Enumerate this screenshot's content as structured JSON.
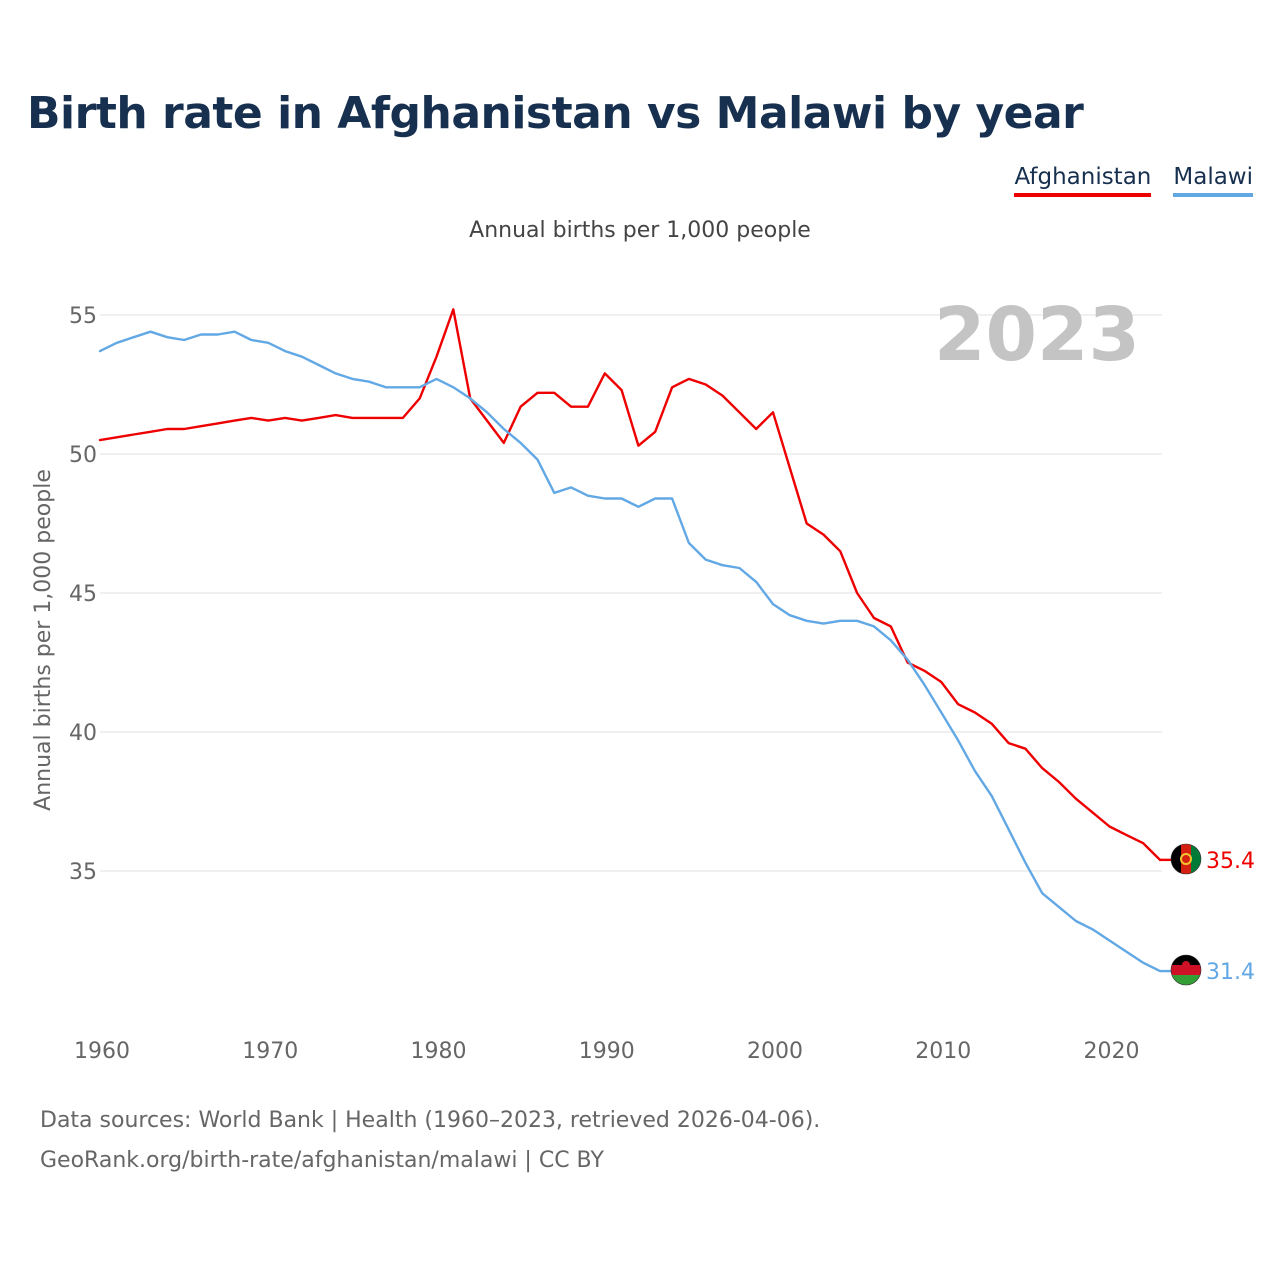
{
  "title": "Birth rate in Afghanistan vs Malawi by year",
  "subtitle": "Annual births per 1,000 people",
  "legend": [
    {
      "label": "Afghanistan",
      "color": "#ee0000"
    },
    {
      "label": "Malawi",
      "color": "#62a8e5"
    }
  ],
  "year_badge": "2023",
  "source_lines": [
    "Data sources: World Bank | Health (1960–2023, retrieved 2026-04-06).",
    "GeoRank.org/birth-rate/afghanistan/malawi | CC BY"
  ],
  "chart_data": {
    "type": "line",
    "title": "Birth rate in Afghanistan vs Malawi by year",
    "xlabel": "",
    "ylabel": "Annual births per 1,000 people",
    "xlim": [
      1960,
      2023
    ],
    "ylim": [
      30,
      56
    ],
    "xticks": [
      1960,
      1970,
      1980,
      1990,
      2000,
      2010,
      2020
    ],
    "yticks": [
      35,
      40,
      45,
      50,
      55
    ],
    "grid": true,
    "legend_position": "top-right",
    "x": [
      1960,
      1961,
      1962,
      1963,
      1964,
      1965,
      1966,
      1967,
      1968,
      1969,
      1970,
      1971,
      1972,
      1973,
      1974,
      1975,
      1976,
      1977,
      1978,
      1979,
      1980,
      1981,
      1982,
      1983,
      1984,
      1985,
      1986,
      1987,
      1988,
      1989,
      1990,
      1991,
      1992,
      1993,
      1994,
      1995,
      1996,
      1997,
      1998,
      1999,
      2000,
      2001,
      2002,
      2003,
      2004,
      2005,
      2006,
      2007,
      2008,
      2009,
      2010,
      2011,
      2012,
      2013,
      2014,
      2015,
      2016,
      2017,
      2018,
      2019,
      2020,
      2021,
      2022,
      2023
    ],
    "series": [
      {
        "name": "Afghanistan",
        "color": "#ee0000",
        "end_label": "35.4",
        "flag": "afghanistan-flag",
        "values": [
          50.5,
          50.6,
          50.7,
          50.8,
          50.9,
          50.9,
          51.0,
          51.1,
          51.2,
          51.3,
          51.2,
          51.3,
          51.2,
          51.3,
          51.4,
          51.3,
          51.3,
          51.3,
          51.3,
          52.0,
          53.5,
          55.2,
          52.0,
          51.2,
          50.4,
          51.7,
          52.2,
          52.2,
          51.7,
          51.7,
          52.9,
          52.3,
          50.3,
          50.8,
          52.4,
          52.7,
          52.5,
          52.1,
          51.5,
          50.9,
          51.5,
          49.5,
          47.5,
          47.1,
          46.5,
          45.0,
          44.1,
          43.8,
          42.5,
          42.2,
          41.8,
          41.0,
          40.7,
          40.3,
          39.6,
          39.4,
          38.7,
          38.2,
          37.6,
          37.1,
          36.6,
          36.3,
          36.0,
          35.4
        ]
      },
      {
        "name": "Malawi",
        "color": "#62a8e5",
        "end_label": "31.4",
        "flag": "malawi-flag",
        "values": [
          53.7,
          54.0,
          54.2,
          54.4,
          54.2,
          54.1,
          54.3,
          54.3,
          54.4,
          54.1,
          54.0,
          53.7,
          53.5,
          53.2,
          52.9,
          52.7,
          52.6,
          52.4,
          52.4,
          52.4,
          52.7,
          52.4,
          52.0,
          51.5,
          50.9,
          50.4,
          49.8,
          48.6,
          48.8,
          48.5,
          48.4,
          48.4,
          48.1,
          48.4,
          48.4,
          46.8,
          46.2,
          46.0,
          45.9,
          45.4,
          44.6,
          44.2,
          44.0,
          43.9,
          44.0,
          44.0,
          43.8,
          43.3,
          42.6,
          41.7,
          40.7,
          39.7,
          38.6,
          37.7,
          36.5,
          35.3,
          34.2,
          33.7,
          33.2,
          32.9,
          32.5,
          32.1,
          31.7,
          31.4
        ]
      }
    ]
  }
}
